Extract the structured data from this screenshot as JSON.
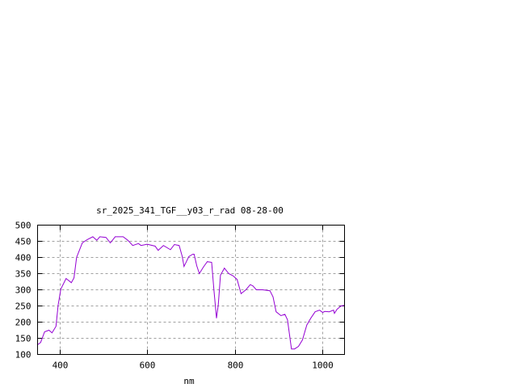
{
  "chart_data": {
    "type": "line",
    "title": "sr_2025_341_TGF__y03_r_rad 08-28-00",
    "xlabel": "nm",
    "ylabel": "",
    "xlim": [
      350,
      1050
    ],
    "ylim": [
      100,
      500
    ],
    "xticks": [
      400,
      600,
      800,
      1000
    ],
    "yticks": [
      100,
      150,
      200,
      250,
      300,
      350,
      400,
      450,
      500
    ],
    "grid": true,
    "line_color": "#9400d3",
    "series": [
      {
        "x": [
          350,
          357,
          366,
          376,
          383,
          392,
          397,
          403,
          415,
          427,
          433,
          439,
          452,
          463,
          476,
          485,
          492,
          506,
          516,
          527,
          545,
          556,
          567,
          580,
          586,
          600,
          618,
          625,
          637,
          653,
          662,
          673,
          680,
          684,
          695,
          704,
          707,
          713,
          719,
          728,
          737,
          747,
          752,
          758,
          762,
          767,
          776,
          786,
          796,
          805,
          814,
          825,
          835,
          841,
          849,
          863,
          880,
          887,
          894,
          905,
          914,
          920,
          929,
          936,
          945,
          954,
          964,
          973,
          983,
          993,
          1000,
          1005,
          1015,
          1025,
          1027,
          1033,
          1042,
          1050
        ],
        "y": [
          130,
          137,
          170,
          175,
          167,
          187,
          253,
          302,
          335,
          322,
          337,
          400,
          445,
          455,
          464,
          453,
          464,
          462,
          445,
          464,
          464,
          453,
          437,
          443,
          437,
          441,
          435,
          422,
          437,
          424,
          440,
          437,
          403,
          372,
          403,
          410,
          410,
          374,
          350,
          370,
          387,
          385,
          303,
          212,
          253,
          345,
          367,
          350,
          343,
          332,
          288,
          300,
          316,
          312,
          300,
          300,
          297,
          278,
          232,
          220,
          224,
          207,
          117,
          117,
          125,
          145,
          191,
          212,
          232,
          237,
          230,
          233,
          232,
          237,
          227,
          240,
          250,
          252
        ]
      }
    ]
  }
}
